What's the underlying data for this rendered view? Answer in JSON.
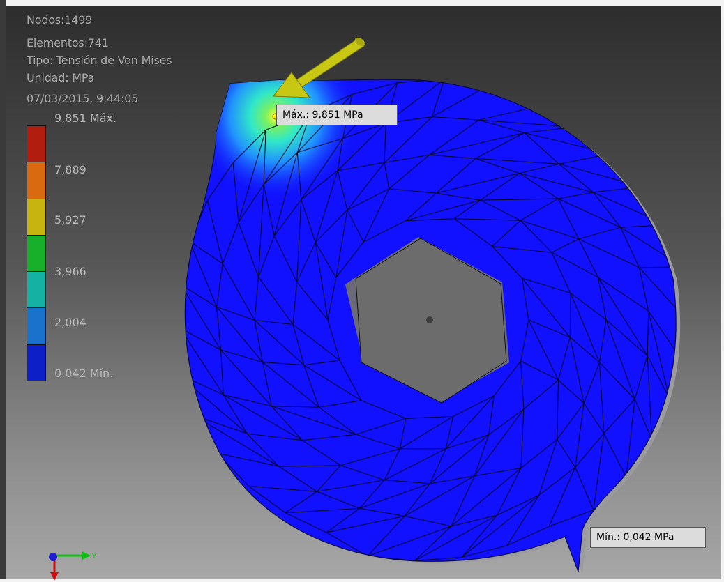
{
  "viewport": {
    "info": {
      "nodes": "Nodos:1499",
      "elements": "Elementos:741",
      "type": "Tipo: Tensión de Von Mises",
      "unit": "Unidad: MPa",
      "date": "07/03/2015, 9:44:05"
    },
    "legend": {
      "labels": [
        "9,851 Máx.",
        "7,889",
        "5,927",
        "3,966",
        "2,004",
        "0,042 Mín."
      ],
      "colors": [
        "#b11e10",
        "#d96a10",
        "#c8b410",
        "#18b02a",
        "#15b2a4",
        "#1a72cc",
        "#0d20c8"
      ]
    },
    "probes": {
      "max": "Máx.: 9,851 MPa",
      "min": "Mín.: 0,042 MPa"
    },
    "model": {
      "base_color": "#1010ff",
      "hot_color": "#ffff30",
      "arrow_color": "#c8c814"
    },
    "triad": {
      "y_label": "Y",
      "x_color": "#d01010",
      "y_color": "#10c010",
      "z_color": "#2020d0"
    }
  }
}
